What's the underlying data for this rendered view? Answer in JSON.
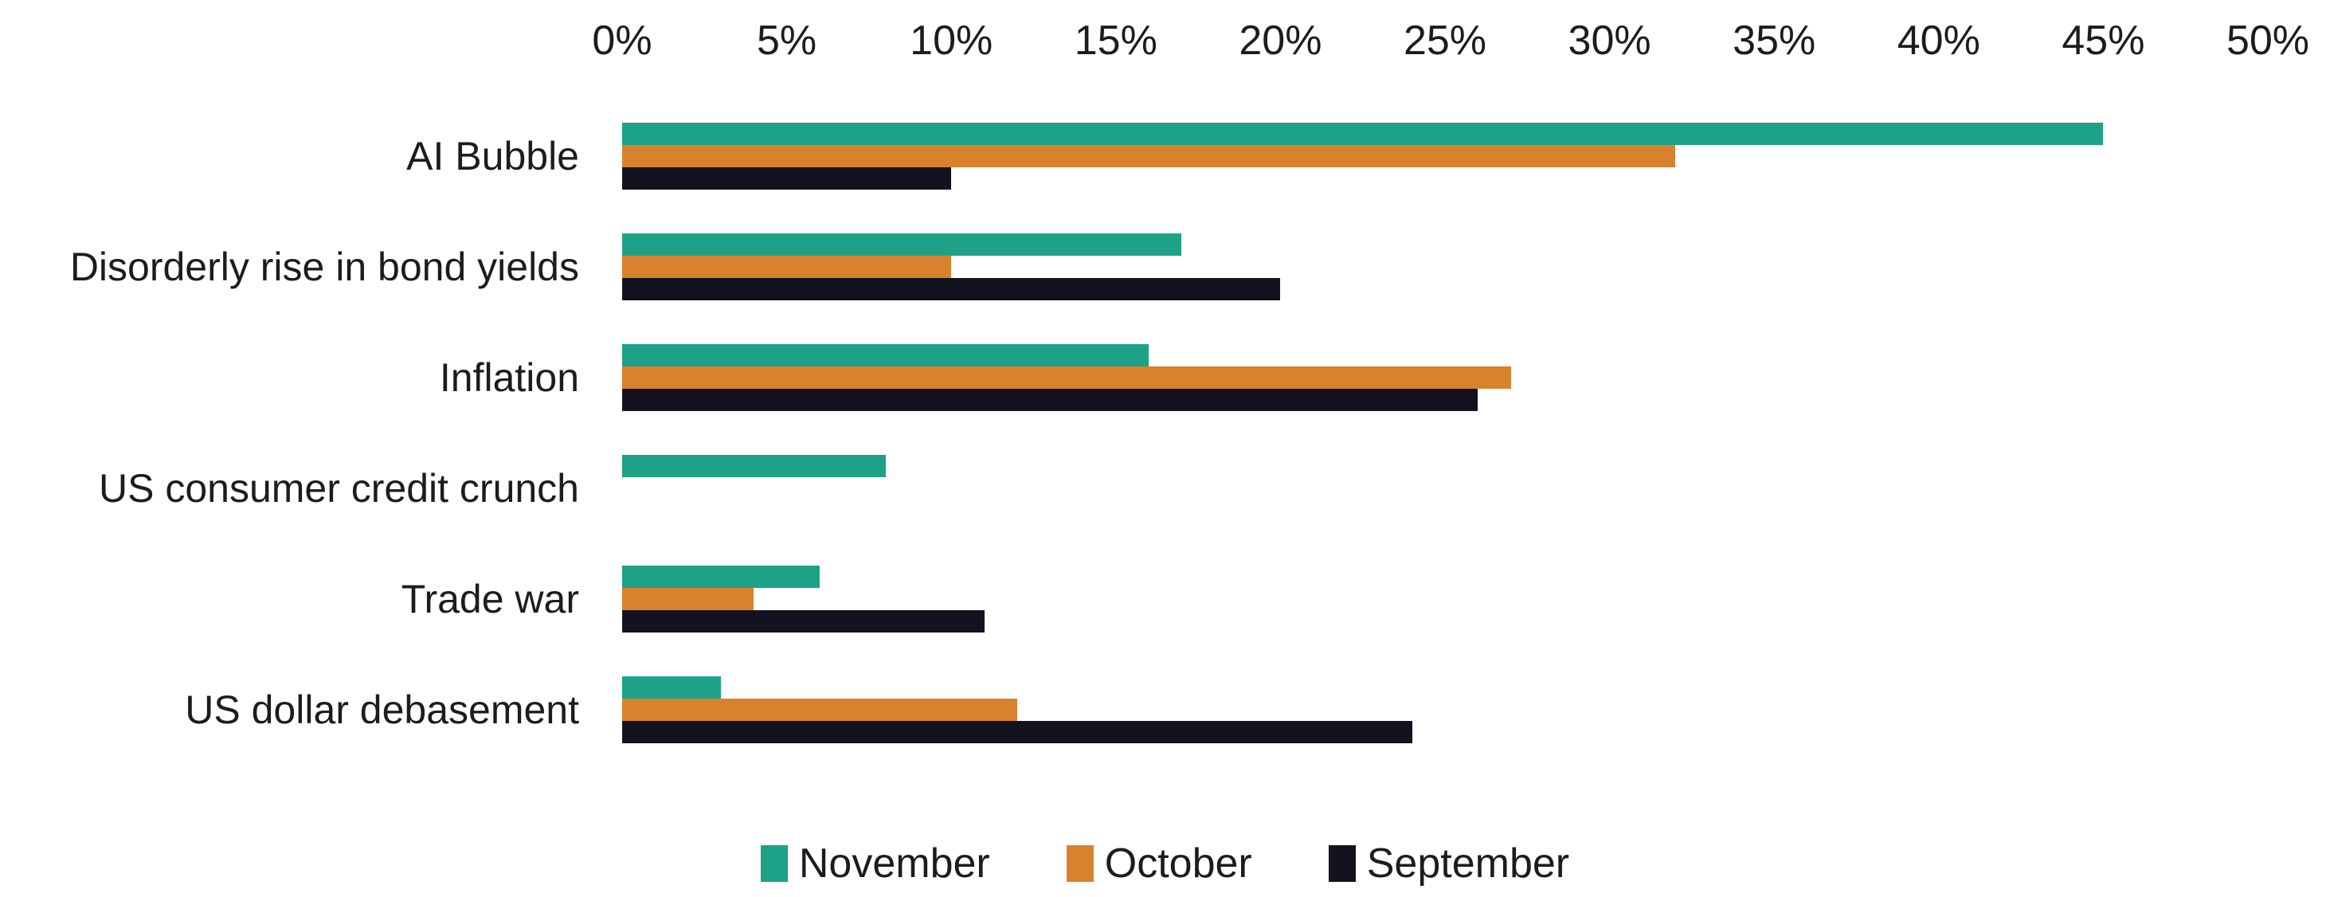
{
  "chart_data": {
    "type": "bar",
    "orientation": "horizontal",
    "title": "",
    "categories": [
      "AI Bubble",
      "Disorderly rise in bond yields",
      "Inflation",
      "US consumer credit crunch",
      "Trade war",
      "US dollar debasement"
    ],
    "series": [
      {
        "name": "November",
        "color": "#1EA287",
        "values": [
          45,
          17,
          16,
          8,
          6,
          3
        ]
      },
      {
        "name": "October",
        "color": "#D8822E",
        "values": [
          32,
          10,
          27,
          0,
          4,
          12
        ]
      },
      {
        "name": "September",
        "color": "#13121F",
        "values": [
          10,
          20,
          26,
          0,
          11,
          24
        ]
      }
    ],
    "x_axis": {
      "min": 0,
      "max": 50,
      "tick_step": 5,
      "tick_labels": [
        "0%",
        "5%",
        "10%",
        "15%",
        "20%",
        "25%",
        "30%",
        "35%",
        "40%",
        "45%",
        "50%"
      ],
      "position": "top"
    },
    "legend": {
      "position": "bottom",
      "items": [
        "November",
        "October",
        "September"
      ]
    },
    "grid": false,
    "background_color": "#FFFFFF",
    "text_color": "#1C1C1C"
  }
}
